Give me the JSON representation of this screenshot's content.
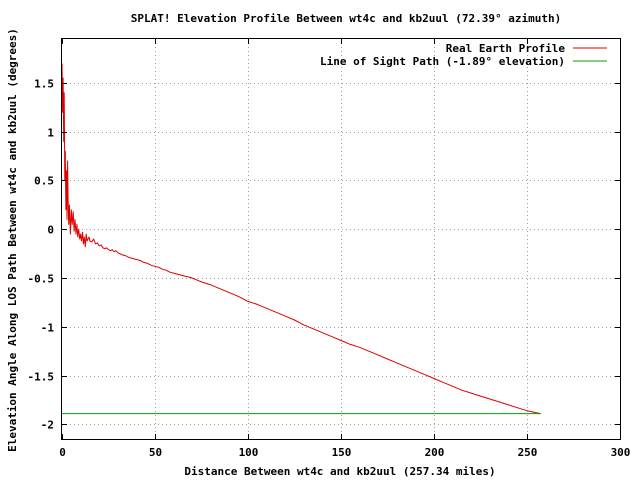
{
  "chart_data": {
    "type": "line",
    "title": "SPLAT! Elevation Profile Between wt4c and kb2uul (72.39° azimuth)",
    "xlabel": "Distance Between wt4c and kb2uul (257.34 miles)",
    "ylabel": "Elevation Angle Along LOS Path Between wt4c and kb2uul (degrees)",
    "xlim": [
      0,
      300
    ],
    "ylim": [
      -2.15,
      1.95
    ],
    "xticks": [
      0,
      50,
      100,
      150,
      200,
      250,
      300
    ],
    "yticks": [
      1.5,
      1,
      0.5,
      0,
      -0.5,
      -1,
      -1.5,
      -2
    ],
    "xtick_labels": [
      "0",
      "50",
      "100",
      "150",
      "200",
      "250",
      "300"
    ],
    "ytick_labels": [
      "1.5",
      "1",
      "0.5",
      "0",
      "-0.5",
      "-1",
      "-1.5",
      "-2"
    ],
    "grid": true,
    "legend_position": "top-right",
    "series": [
      {
        "name": "Real Earth Profile",
        "color": "#e00000",
        "x": [
          0,
          0.3,
          0.6,
          0.9,
          1.2,
          1.5,
          1.8,
          2.1,
          2.4,
          2.7,
          3.0,
          3.3,
          3.6,
          4.0,
          4.5,
          5,
          5.5,
          6,
          6.5,
          7,
          7.5,
          8,
          8.5,
          9,
          9.5,
          10,
          10.5,
          11,
          11.5,
          12,
          12.5,
          13,
          13.5,
          14,
          14.5,
          15,
          16,
          17,
          18,
          19,
          20,
          21,
          22,
          23,
          24,
          25,
          26,
          27,
          28,
          29,
          30,
          32,
          34,
          36,
          38,
          40,
          42,
          44,
          46,
          48,
          50,
          52,
          54,
          56,
          58,
          60,
          62,
          64,
          66,
          68,
          70,
          75,
          80,
          85,
          90,
          95,
          100,
          105,
          110,
          115,
          120,
          125,
          130,
          135,
          140,
          145,
          150,
          155,
          160,
          165,
          170,
          175,
          180,
          185,
          190,
          195,
          200,
          205,
          210,
          215,
          220,
          225,
          230,
          235,
          240,
          245,
          250,
          255,
          257.34
        ],
        "y": [
          1.7,
          1.2,
          1.55,
          0.9,
          1.4,
          0.5,
          0.8,
          0.2,
          0.6,
          0.1,
          0.7,
          0.3,
          0.05,
          0.25,
          -0.05,
          0.2,
          0.05,
          0.18,
          -0.02,
          0.1,
          -0.05,
          0.05,
          -0.08,
          0.0,
          -0.1,
          -0.05,
          -0.12,
          -0.03,
          -0.15,
          -0.08,
          -0.18,
          -0.05,
          -0.12,
          -0.1,
          -0.08,
          -0.12,
          -0.13,
          -0.1,
          -0.15,
          -0.14,
          -0.17,
          -0.16,
          -0.19,
          -0.2,
          -0.19,
          -0.21,
          -0.22,
          -0.21,
          -0.23,
          -0.22,
          -0.24,
          -0.26,
          -0.27,
          -0.29,
          -0.3,
          -0.31,
          -0.32,
          -0.34,
          -0.35,
          -0.37,
          -0.38,
          -0.39,
          -0.41,
          -0.42,
          -0.44,
          -0.45,
          -0.46,
          -0.47,
          -0.48,
          -0.49,
          -0.5,
          -0.54,
          -0.57,
          -0.61,
          -0.65,
          -0.69,
          -0.74,
          -0.77,
          -0.81,
          -0.85,
          -0.89,
          -0.93,
          -0.98,
          -1.02,
          -1.06,
          -1.1,
          -1.14,
          -1.18,
          -1.21,
          -1.25,
          -1.29,
          -1.33,
          -1.37,
          -1.41,
          -1.45,
          -1.49,
          -1.53,
          -1.57,
          -1.61,
          -1.65,
          -1.68,
          -1.71,
          -1.74,
          -1.77,
          -1.8,
          -1.83,
          -1.86,
          -1.88,
          -1.89
        ]
      },
      {
        "name": "Line of Sight Path (-1.89° elevation)",
        "color": "#00a000",
        "x": [
          0,
          257.34
        ],
        "y": [
          -1.89,
          -1.89
        ]
      }
    ]
  }
}
